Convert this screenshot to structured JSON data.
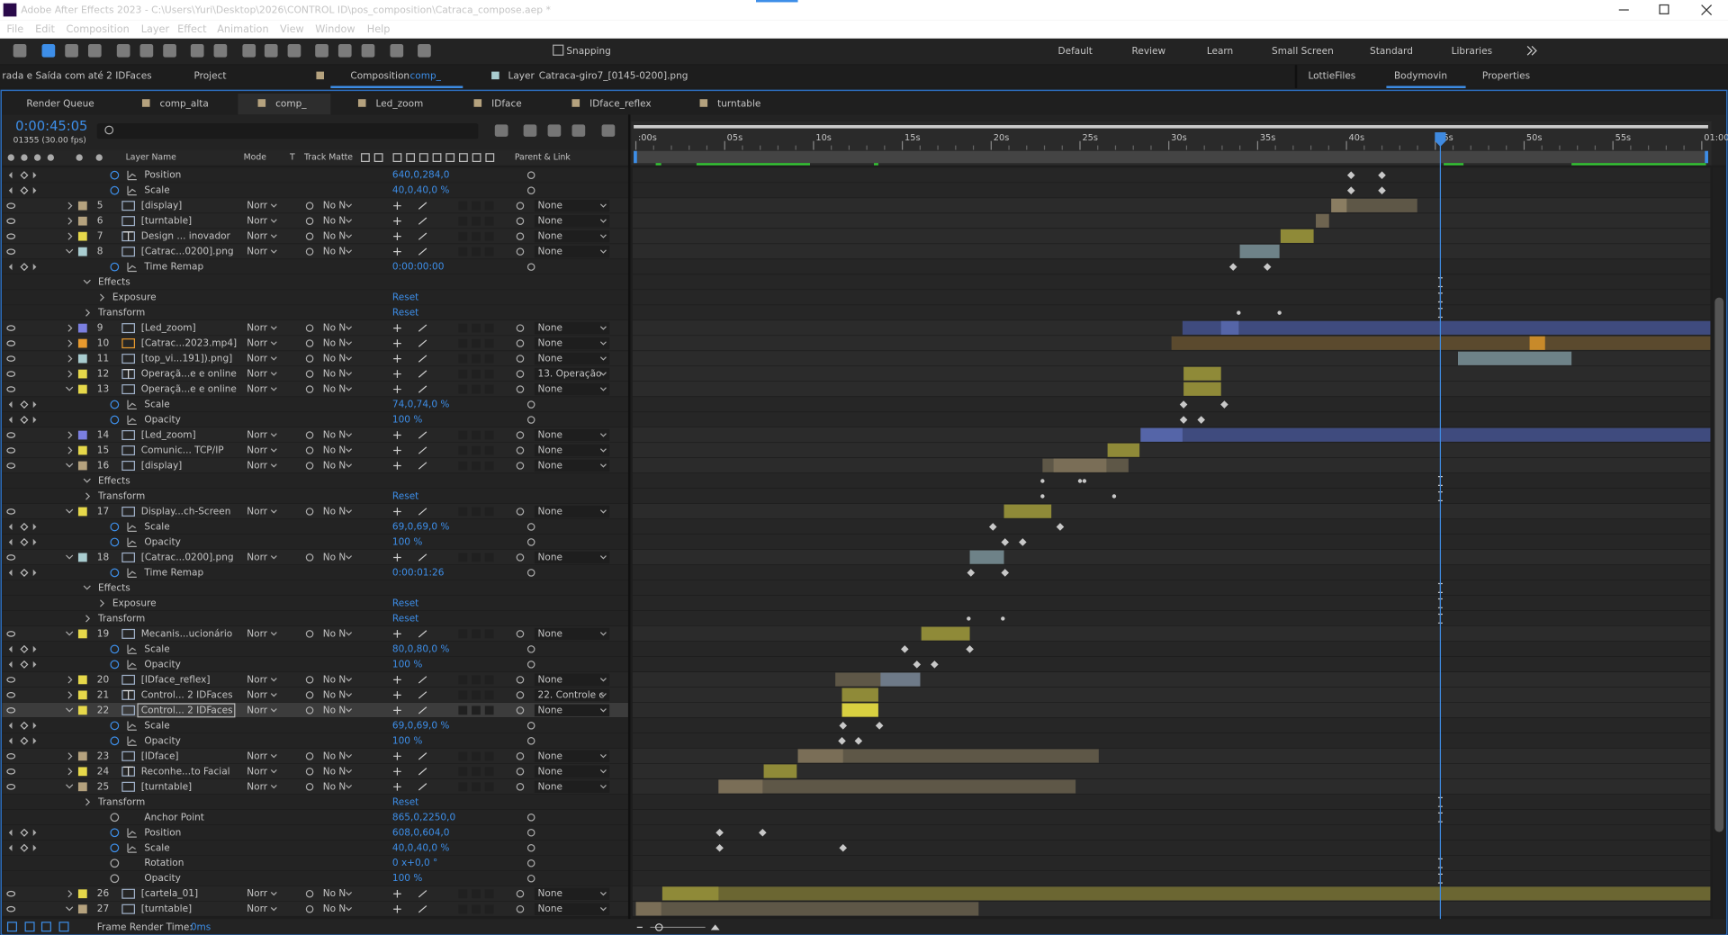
{
  "window": {
    "title": "Adobe After Effects 2023 - C:\\Users\\Yuri\\Desktop\\2026\\CONTROL ID\\pos_composition\\Catraca_compose.aep *"
  },
  "menu": [
    "File",
    "Edit",
    "Composition",
    "Layer",
    "Effect",
    "Animation",
    "View",
    "Window",
    "Help"
  ],
  "toolbar": {
    "snapping": "Snapping",
    "workspaces": [
      "Default",
      "Review",
      "Learn",
      "Small Screen",
      "Standard",
      "Libraries"
    ],
    "active_workspace": "Learn"
  },
  "panels": {
    "left_clip": "rada e Saída com até 2 IDFaces",
    "project": "Project",
    "composition": "Composition",
    "comp_name": "comp_",
    "layer": "Layer",
    "layer_name": "Catraca-giro7_[0145-0200].png",
    "right": [
      "LottieFiles",
      "Bodymovin",
      "Properties"
    ]
  },
  "comp_tabs": [
    "Render Queue",
    "comp_alta",
    "comp_",
    "Led_zoom",
    "IDface",
    "IDface_reflex",
    "turntable"
  ],
  "timecode": "0:00:45:05",
  "frame_info": "01355 (30.00 fps)",
  "columns": {
    "layer_name": "Layer Name",
    "mode": "Mode",
    "t": "T",
    "track_matte": "Track Matte",
    "parent": "Parent & Link"
  },
  "ruler": [
    ":00s",
    "05s",
    "10s",
    "15s",
    "20s",
    "25s",
    "30s",
    "35s",
    "40s",
    "45s",
    "50s",
    "55s",
    "01:00"
  ],
  "rows": [
    {
      "kind": "prop",
      "name": "Position",
      "value": "640,0,284,0"
    },
    {
      "kind": "prop",
      "name": "Scale",
      "value": "40,0,40,0 %"
    },
    {
      "kind": "layer",
      "num": 5,
      "name": "[display]",
      "color": "#b5a27e",
      "icon": "comp",
      "mode": "Norr",
      "matte": "No N",
      "parent": "None",
      "open": false
    },
    {
      "kind": "layer",
      "num": 6,
      "name": "[turntable]",
      "color": "#b5a27e",
      "icon": "comp",
      "mode": "Norr",
      "matte": "No N",
      "parent": "None",
      "open": false
    },
    {
      "kind": "layer",
      "num": 7,
      "name": "Design ... inovador",
      "color": "#e6d84a",
      "icon": "text",
      "mode": "Norr",
      "matte": "No N",
      "parent": "None",
      "open": false
    },
    {
      "kind": "layer",
      "num": 8,
      "name": "[Catrac...0200].png",
      "color": "#a9cdd0",
      "icon": "comp",
      "mode": "Norr",
      "matte": "No N",
      "parent": "None",
      "open": true
    },
    {
      "kind": "prop",
      "name": "Time Remap",
      "value": "0:00:00:00"
    },
    {
      "kind": "group",
      "level": 1,
      "name": "Effects"
    },
    {
      "kind": "group",
      "level": 2,
      "name": "Exposure",
      "value": "Reset"
    },
    {
      "kind": "group",
      "level": 1,
      "name": "Transform",
      "value": "Reset"
    },
    {
      "kind": "layer",
      "num": 9,
      "name": "[Led_zoom]",
      "color": "#7b7fe0",
      "icon": "comp",
      "mode": "Norr",
      "matte": "No N",
      "parent": "None",
      "open": false
    },
    {
      "kind": "layer",
      "num": 10,
      "name": "[Catrac...2023.mp4]",
      "color": "#e89a2e",
      "icon": "video",
      "mode": "Norr",
      "matte": "No N",
      "parent": "None",
      "open": false
    },
    {
      "kind": "layer",
      "num": 11,
      "name": "[top_vi...191]).png]",
      "color": "#a9cdd0",
      "icon": "comp",
      "mode": "Norr",
      "matte": "No N",
      "parent": "None",
      "open": false
    },
    {
      "kind": "layer",
      "num": 12,
      "name": "Operaçã...e e online",
      "color": "#e6d84a",
      "icon": "text",
      "mode": "Norr",
      "matte": "No N",
      "parent": "13. Operação",
      "open": false
    },
    {
      "kind": "layer",
      "num": 13,
      "name": "Operaçã...e e online",
      "color": "#e6d84a",
      "icon": "file",
      "mode": "Norr",
      "matte": "No N",
      "parent": "None",
      "open": true
    },
    {
      "kind": "prop",
      "name": "Scale",
      "value": "74,0,74,0 %"
    },
    {
      "kind": "prop",
      "name": "Opacity",
      "value": "100 %"
    },
    {
      "kind": "layer",
      "num": 14,
      "name": "[Led_zoom]",
      "color": "#7b7fe0",
      "icon": "comp",
      "mode": "Norr",
      "matte": "No N",
      "parent": "None",
      "open": false
    },
    {
      "kind": "layer",
      "num": 15,
      "name": "Comunic... TCP/IP",
      "color": "#e6d84a",
      "icon": "file",
      "mode": "Norr",
      "matte": "No N",
      "parent": "None",
      "open": false
    },
    {
      "kind": "layer",
      "num": 16,
      "name": "[display]",
      "color": "#b5a27e",
      "icon": "comp",
      "mode": "Norr",
      "matte": "No N",
      "parent": "None",
      "open": true
    },
    {
      "kind": "group",
      "level": 1,
      "name": "Effects"
    },
    {
      "kind": "group",
      "level": 1,
      "name": "Transform",
      "value": "Reset"
    },
    {
      "kind": "layer",
      "num": 17,
      "name": "Display...ch-Screen",
      "color": "#e6d84a",
      "icon": "file",
      "mode": "Norr",
      "matte": "No N",
      "parent": "None",
      "open": true
    },
    {
      "kind": "prop",
      "name": "Scale",
      "value": "69,0,69,0 %"
    },
    {
      "kind": "prop",
      "name": "Opacity",
      "value": "100 %"
    },
    {
      "kind": "layer",
      "num": 18,
      "name": "[Catrac...0200].png",
      "color": "#a9cdd0",
      "icon": "comp",
      "mode": "Norr",
      "matte": "No N",
      "parent": "None",
      "open": true
    },
    {
      "kind": "prop",
      "name": "Time Remap",
      "value": "0:00:01:26"
    },
    {
      "kind": "group",
      "level": 1,
      "name": "Effects"
    },
    {
      "kind": "group",
      "level": 2,
      "name": "Exposure",
      "value": "Reset"
    },
    {
      "kind": "group",
      "level": 1,
      "name": "Transform",
      "value": "Reset"
    },
    {
      "kind": "layer",
      "num": 19,
      "name": "Mecanis...ucionário",
      "color": "#e6d84a",
      "icon": "file",
      "mode": "Norr",
      "matte": "No N",
      "parent": "None",
      "open": true
    },
    {
      "kind": "prop",
      "name": "Scale",
      "value": "80,0,80,0 %"
    },
    {
      "kind": "prop",
      "name": "Opacity",
      "value": "100 %"
    },
    {
      "kind": "layer",
      "num": 20,
      "name": "[IDface_reflex]",
      "color": "#e6d84a",
      "icon": "comp",
      "mode": "Norr",
      "matte": "No N",
      "parent": "None",
      "open": false
    },
    {
      "kind": "layer",
      "num": 21,
      "name": "Control... 2 IDFaces",
      "color": "#e6d84a",
      "icon": "text",
      "mode": "Norr",
      "matte": "No N",
      "parent": "22. Controle c",
      "open": false
    },
    {
      "kind": "layer",
      "num": 22,
      "name": "Control... 2 IDFaces",
      "color": "#e6d84a",
      "icon": "file",
      "mode": "Norr",
      "matte": "No N",
      "parent": "None",
      "open": true,
      "selected": true
    },
    {
      "kind": "prop",
      "name": "Scale",
      "value": "69,0,69,0 %"
    },
    {
      "kind": "prop",
      "name": "Opacity",
      "value": "100 %"
    },
    {
      "kind": "layer",
      "num": 23,
      "name": "[IDface]",
      "color": "#b5a27e",
      "icon": "comp",
      "mode": "Norr",
      "matte": "No N",
      "parent": "None",
      "open": false
    },
    {
      "kind": "layer",
      "num": 24,
      "name": "Reconhe...to Facial",
      "color": "#e6d84a",
      "icon": "text",
      "mode": "Norr",
      "matte": "No N",
      "parent": "None",
      "open": false
    },
    {
      "kind": "layer",
      "num": 25,
      "name": "[turntable]",
      "color": "#b5a27e",
      "icon": "comp",
      "mode": "Norr",
      "matte": "No N",
      "parent": "None",
      "open": true
    },
    {
      "kind": "group",
      "level": 1,
      "name": "Transform",
      "value": "Reset"
    },
    {
      "kind": "prop",
      "name": "Anchor Point",
      "value": "865,0,2250,0",
      "static": true
    },
    {
      "kind": "prop",
      "name": "Position",
      "value": "608,0,604,0"
    },
    {
      "kind": "prop",
      "name": "Scale",
      "value": "40,0,40,0 %"
    },
    {
      "kind": "prop",
      "name": "Rotation",
      "value": "0 x+0,0 °",
      "static": true
    },
    {
      "kind": "prop",
      "name": "Opacity",
      "value": "100 %",
      "static": true
    },
    {
      "kind": "layer",
      "num": 26,
      "name": "[cartela_01]",
      "color": "#e6d84a",
      "icon": "comp",
      "mode": "Norr",
      "matte": "No N",
      "parent": "None",
      "open": false
    },
    {
      "kind": "layer",
      "num": 27,
      "name": "[turntable]",
      "color": "#b5a27e",
      "icon": "comp",
      "mode": "Norr",
      "matte": "No N",
      "parent": "None",
      "open": true
    }
  ],
  "footer": {
    "label": "Frame Render Time:",
    "value": "0ms"
  }
}
